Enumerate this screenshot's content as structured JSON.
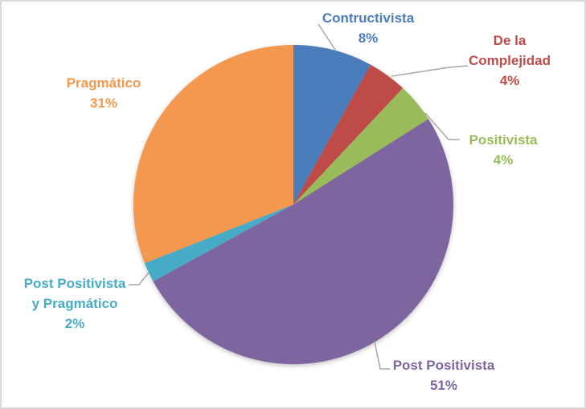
{
  "chart_data": {
    "type": "pie",
    "title": "",
    "legend": "none",
    "start_angle_deg": 0,
    "direction": "clockwise",
    "unit": "%",
    "background_color": "#FFFFFF",
    "frame_border_color": "#D9D9D9",
    "leader_line_color": "#A6A6A6",
    "categories": [
      "Contructivista",
      "De la Complejidad",
      "Positivista",
      "Post Positivista",
      "Post Positivista y Pragmático",
      "Pragmático"
    ],
    "values": [
      8,
      4,
      4,
      51,
      2,
      31
    ],
    "slices": [
      {
        "name": "Contructivista",
        "value": 8,
        "pct_label": "8%",
        "color": "#4A7CBC",
        "label_lines": [
          "Contructivista"
        ]
      },
      {
        "name": "De la Complejidad",
        "value": 4,
        "pct_label": "4%",
        "color": "#BE4B48",
        "label_lines": [
          "De la",
          "Complejidad"
        ]
      },
      {
        "name": "Positivista",
        "value": 4,
        "pct_label": "4%",
        "color": "#9ABB59",
        "label_lines": [
          "Positivista"
        ]
      },
      {
        "name": "Post Positivista",
        "value": 51,
        "pct_label": "51%",
        "color": "#7E65A0",
        "label_lines": [
          "Post Positivista"
        ]
      },
      {
        "name": "Post Positivista y Pragmático",
        "value": 2,
        "pct_label": "2%",
        "color": "#45ABC7",
        "label_lines": [
          "Post Positivista",
          "y Pragmático"
        ]
      },
      {
        "name": "Pragmático",
        "value": 31,
        "pct_label": "31%",
        "color": "#F3984E",
        "label_lines": [
          "Pragmático"
        ]
      }
    ]
  }
}
